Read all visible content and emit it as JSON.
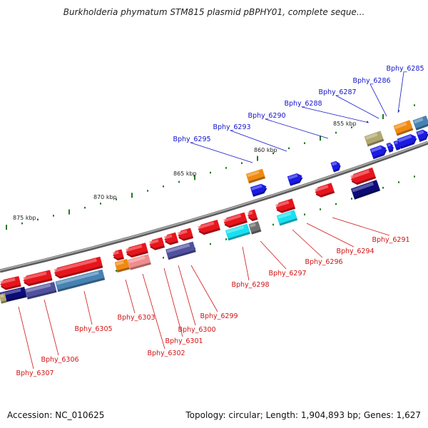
{
  "title": "Burkholderia phymatum STM815 plasmid pBPHY01, complete seque...",
  "footer": {
    "accession": "Accession: NC_010625",
    "stats": "Topology: circular; Length: 1,904,893 bp; Genes: 1,627"
  },
  "colors": {
    "backbone": "#8a8a8a",
    "forward_label": "#1414c8",
    "reverse_label": "#d01414",
    "tick": "#1f7a1f",
    "gene_red": "#e8141c",
    "gene_blue": "#1a1ae6",
    "gene_navy": "#0c0c78",
    "gene_orange": "#f08a10",
    "gene_cyan": "#18e0f0",
    "gene_steel": "#4682b4",
    "gene_pink": "#f08c8c",
    "gene_purple": "#5050a0",
    "gene_olive": "#b0a870",
    "gene_gray": "#707070"
  },
  "kbp_markers": [
    "875 kbp",
    "870 kbp",
    "865 kbp",
    "860 kbp",
    "855 kbp"
  ],
  "forward_genes": [
    {
      "label": "Bphy_6285",
      "color": "gene_blue"
    },
    {
      "label": "Bphy_6286",
      "color": "gene_blue"
    },
    {
      "label": "Bphy_6287",
      "color": "gene_blue"
    },
    {
      "label": "Bphy_6288",
      "color": "gene_blue"
    },
    {
      "label": "Bphy_6290",
      "color": "gene_blue"
    },
    {
      "label": "Bphy_6293",
      "color": "gene_blue"
    },
    {
      "label": "Bphy_6295",
      "color": "gene_blue"
    }
  ],
  "reverse_genes": [
    {
      "label": "Bphy_6291",
      "color": "gene_red"
    },
    {
      "label": "Bphy_6294",
      "color": "gene_red"
    },
    {
      "label": "Bphy_6296",
      "color": "gene_red"
    },
    {
      "label": "Bphy_6297",
      "color": "gene_red"
    },
    {
      "label": "Bphy_6298",
      "color": "gene_red"
    },
    {
      "label": "Bphy_6299",
      "color": "gene_red"
    },
    {
      "label": "Bphy_6300",
      "color": "gene_red"
    },
    {
      "label": "Bphy_6301",
      "color": "gene_red"
    },
    {
      "label": "Bphy_6302",
      "color": "gene_red"
    },
    {
      "label": "Bphy_6303",
      "color": "gene_red"
    },
    {
      "label": "Bphy_6305",
      "color": "gene_red"
    },
    {
      "label": "Bphy_6306",
      "color": "gene_red"
    },
    {
      "label": "Bphy_6307",
      "color": "gene_red"
    }
  ]
}
